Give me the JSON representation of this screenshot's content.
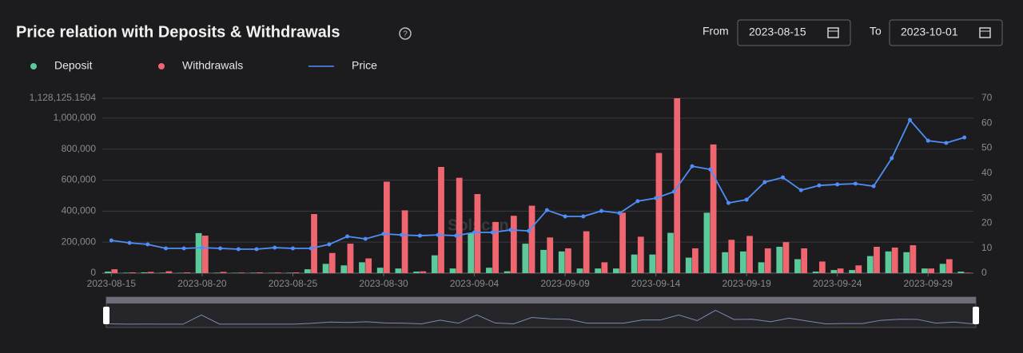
{
  "header": {
    "title": "Price relation with Deposits & Withdrawals",
    "from_label": "From",
    "from_date": "2023-08-15",
    "to_label": "To",
    "to_date": "2023-10-01"
  },
  "chart_data": {
    "type": "bar_line",
    "watermark": "Solscan",
    "categories": [
      "2023-08-15",
      null,
      null,
      null,
      null,
      "2023-08-20",
      null,
      null,
      null,
      null,
      "2023-08-25",
      null,
      null,
      null,
      null,
      "2023-08-30",
      null,
      null,
      null,
      null,
      "2023-09-04",
      null,
      null,
      null,
      null,
      "2023-09-09",
      null,
      null,
      null,
      null,
      "2023-09-14",
      null,
      null,
      null,
      null,
      "2023-09-19",
      null,
      null,
      null,
      null,
      "2023-09-24",
      null,
      null,
      null,
      null,
      "2023-09-29",
      null,
      null
    ],
    "series": [
      {
        "name": "Deposit",
        "color": "#5cc99a",
        "type": "bar",
        "values": [
          10000,
          3000,
          5000,
          3000,
          2000,
          258000,
          3000,
          2000,
          3000,
          2000,
          3000,
          25000,
          60000,
          50000,
          70000,
          35000,
          30000,
          10000,
          115000,
          30000,
          260000,
          35000,
          12000,
          190000,
          150000,
          140000,
          30000,
          30000,
          30000,
          120000,
          120000,
          260000,
          100000,
          390000,
          135000,
          140000,
          70000,
          170000,
          90000,
          10000,
          20000,
          20000,
          110000,
          140000,
          135000,
          30000,
          60000,
          10000
        ]
      },
      {
        "name": "Withdrawals",
        "color": "#ef6570",
        "type": "bar",
        "values": [
          25000,
          5000,
          8000,
          12000,
          5000,
          242000,
          8000,
          4000,
          5000,
          4000,
          5000,
          381000,
          130000,
          190000,
          95000,
          590000,
          405000,
          12000,
          685000,
          615000,
          510000,
          330000,
          370000,
          435000,
          230000,
          160000,
          270000,
          70000,
          390000,
          235000,
          775000,
          1128125.1504,
          160000,
          830000,
          215000,
          240000,
          160000,
          200000,
          160000,
          75000,
          30000,
          50000,
          170000,
          165000,
          180000,
          30000,
          90000,
          3000
        ]
      },
      {
        "name": "Price",
        "color": "#4f8ef7",
        "type": "line",
        "axis": "y2",
        "values": [
          13.1,
          12.1,
          11.5,
          9.9,
          9.9,
          10.2,
          9.9,
          9.6,
          9.6,
          10.2,
          9.9,
          9.9,
          11.5,
          14.7,
          13.7,
          15.7,
          15.3,
          15.0,
          15.3,
          15.0,
          16.3,
          16.3,
          17.3,
          16.9,
          25.2,
          22.7,
          22.7,
          24.9,
          24.0,
          28.8,
          30.0,
          32.6,
          42.8,
          41.5,
          28.1,
          29.4,
          36.4,
          38.3,
          33.2,
          35.1,
          35.5,
          35.8,
          34.8,
          46.0,
          61.3,
          53.0,
          52.1,
          54.3
        ]
      }
    ],
    "ylim": [
      0,
      1128125.1504
    ],
    "yticks": [
      0,
      {
        "value": 200000,
        "label": "200,000"
      },
      {
        "value": 400000,
        "label": "400,000"
      },
      {
        "value": 600000,
        "label": "600,000"
      },
      {
        "value": 800000,
        "label": "800,000"
      },
      {
        "value": 1000000,
        "label": "1,000,000"
      },
      {
        "value": 1128125.1504,
        "label": "1,128,125.1504"
      }
    ],
    "y2lim": [
      0,
      70
    ],
    "y2ticks": [
      0,
      10,
      20,
      30,
      40,
      50,
      60,
      70
    ],
    "grid": true
  }
}
